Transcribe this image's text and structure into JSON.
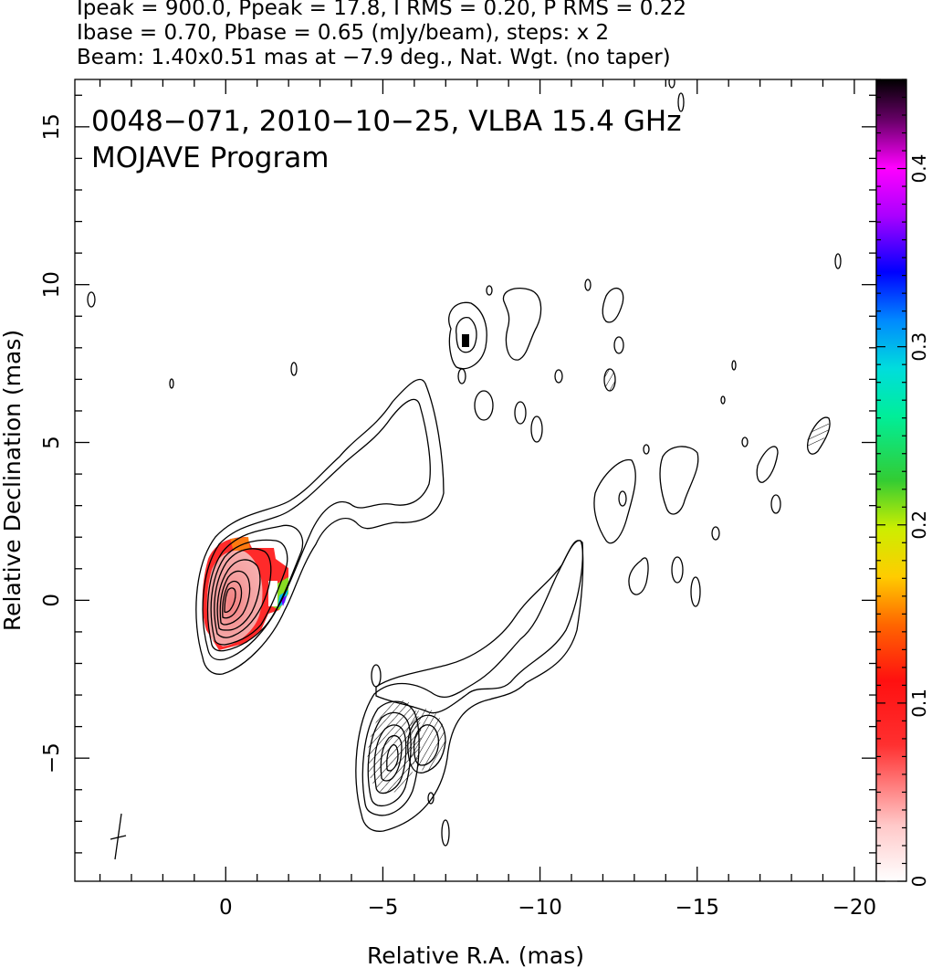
{
  "header": {
    "line1": "Ipeak = 900.0, Ppeak = 17.8, I RMS = 0.20, P RMS = 0.22",
    "line2": "Ibase = 0.70, Pbase = 0.65 (mJy/beam), steps: x 2",
    "line3": "Beam: 1.40x0.51 mas at −7.9 deg., Nat. Wgt. (no taper)"
  },
  "chart_data": {
    "type": "heatmap",
    "title": "0048−071, 2010−10−25, VLBA 15.4 GHz",
    "subtitle": "MOJAVE Program",
    "xlabel": "Relative R.A. (mas)",
    "ylabel": "Relative Declination (mas)",
    "xlim": [
      4.8,
      -20.7
    ],
    "ylim": [
      -8.9,
      16.5
    ],
    "x_ticks": [
      0,
      -5,
      -10,
      -15,
      -20
    ],
    "x_tick_labels": [
      "0",
      "−5",
      "−10",
      "−15",
      "−20"
    ],
    "y_ticks": [
      -5,
      0,
      5,
      10,
      15
    ],
    "y_tick_labels": [
      "−5",
      "0",
      "5",
      "10",
      "15"
    ],
    "colorbar": {
      "range": [
        0,
        0.45
      ],
      "ticks": [
        0,
        0.1,
        0.2,
        0.3,
        0.4
      ],
      "tick_labels": [
        "0",
        "0.1",
        "0.2",
        "0.3",
        "0.4"
      ]
    },
    "features": {
      "core_position": [
        0,
        0
      ],
      "secondary_component_position": [
        -5.3,
        -4.9
      ],
      "beam": {
        "major_mas": 1.4,
        "minor_mas": 0.51,
        "pa_deg": -7.9,
        "position": [
          3.4,
          -7.9
        ]
      }
    },
    "grid": false
  }
}
